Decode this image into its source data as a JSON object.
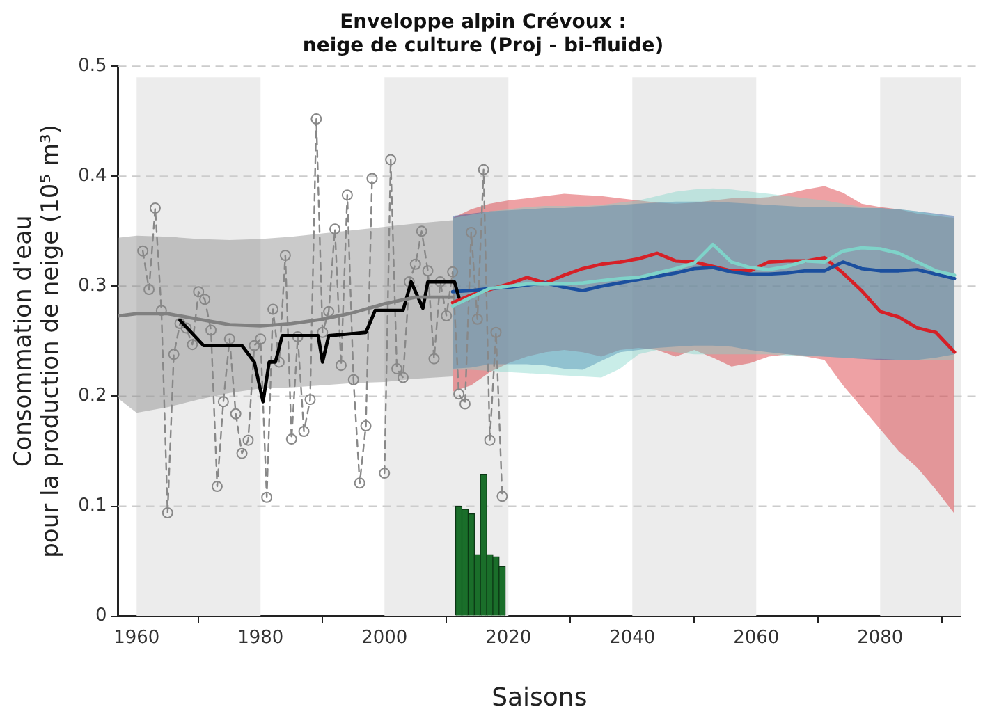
{
  "chart_data": {
    "type": "line",
    "title": "Enveloppe alpin Crévoux :\nneige de culture (Proj - bi-fluide)",
    "xlabel": "Saisons",
    "ylabel": "Consommation d'eau\npour la production de neige (10⁵ m³)",
    "xlim": [
      1957,
      2093
    ],
    "xticks": [
      1960,
      1980,
      2000,
      2020,
      2040,
      2060,
      2080
    ],
    "ylim": [
      0,
      0.5
    ],
    "yticks": [
      0,
      0.1,
      0.2,
      0.3,
      0.4,
      0.5
    ],
    "grid": "y",
    "bands": [
      {
        "axis": "x",
        "from": 1960,
        "to": 1980,
        "color": "#ececec"
      },
      {
        "axis": "x",
        "from": 2000,
        "to": 2020,
        "color": "#ececec"
      },
      {
        "axis": "x",
        "from": 2040,
        "to": 2060,
        "color": "#ececec"
      },
      {
        "axis": "x",
        "from": 2080,
        "to": 2093,
        "color": "#ececec"
      }
    ],
    "series": [
      {
        "color": "#808080",
        "x": [
          1957,
          1960,
          1965,
          1970,
          1975,
          1980,
          1985,
          1990,
          1995,
          2000,
          2005,
          2011
        ],
        "values": [
          0.273,
          0.275,
          0.275,
          0.27,
          0.265,
          0.264,
          0.266,
          0.27,
          0.276,
          0.284,
          0.29,
          0.29
        ],
        "lower": [
          0.198,
          0.185,
          0.19,
          0.197,
          0.203,
          0.207,
          0.208,
          0.21,
          0.212,
          0.213,
          0.216,
          0.218
        ],
        "upper": [
          0.344,
          0.346,
          0.345,
          0.343,
          0.342,
          0.343,
          0.345,
          0.348,
          0.351,
          0.354,
          0.357,
          0.36
        ]
      },
      {
        "color": "#888888",
        "line_style": "dashed",
        "marker": "circle",
        "x": [
          1961,
          1962,
          1963,
          1964,
          1965,
          1966,
          1967,
          1968,
          1969,
          1970,
          1971,
          1972,
          1973,
          1974,
          1975,
          1976,
          1977,
          1978,
          1979,
          1980,
          1981,
          1982,
          1983,
          1984,
          1985,
          1986,
          1987,
          1988,
          1989,
          1990,
          1991,
          1992,
          1993,
          1994,
          1995,
          1996,
          1997,
          1998,
          1999,
          2000,
          2001,
          2002,
          2003,
          2004,
          2005,
          2006,
          2007,
          2008,
          2009,
          2010,
          2011,
          2012,
          2013,
          2014,
          2015,
          2016,
          2017,
          2018,
          2019
        ],
        "values": [
          0.332,
          0.297,
          0.371,
          0.278,
          0.094,
          0.238,
          0.266,
          0.262,
          0.247,
          0.295,
          0.288,
          0.26,
          0.118,
          0.195,
          0.252,
          0.184,
          0.148,
          0.16,
          0.246,
          0.252,
          0.108,
          0.279,
          0.231,
          0.328,
          0.161,
          0.254,
          0.168,
          0.197,
          0.452,
          0.258,
          0.277,
          0.352,
          0.228,
          0.383,
          0.215,
          0.121,
          0.173,
          0.398,
          null,
          0.13,
          0.415,
          0.225,
          0.217,
          0.304,
          0.32,
          0.35,
          0.314,
          0.234,
          0.304,
          0.273,
          0.313,
          0.202,
          0.193,
          0.349,
          0.27,
          0.406,
          0.16,
          0.258,
          0.109
        ]
      },
      {
        "color": "#000000",
        "x": [
          1967,
          1970.8,
          1977,
          1979,
          1980.4,
          1981.4,
          1982.4,
          1983.5,
          1989.3,
          1990,
          1991,
          1997,
          1998.5,
          2003,
          2004.3,
          2006.2,
          2007,
          2011.3,
          2012
        ],
        "values": [
          0.269,
          0.246,
          0.246,
          0.231,
          0.195,
          0.231,
          0.231,
          0.255,
          0.255,
          0.231,
          0.255,
          0.258,
          0.278,
          0.278,
          0.304,
          0.28,
          0.304,
          0.304,
          0.29
        ]
      },
      {
        "type": "bar",
        "color": "#1a6e2a",
        "x": [
          2012,
          2013,
          2014,
          2015,
          2016,
          2017,
          2018,
          2019
        ],
        "values": [
          0.1,
          0.097,
          0.093,
          0.056,
          0.129,
          0.056,
          0.054,
          0.045
        ]
      },
      {
        "color": "#7fd3c9",
        "x": [
          2011,
          2014,
          2017,
          2020,
          2023,
          2026,
          2029,
          2032,
          2035,
          2038,
          2041,
          2044,
          2047,
          2050,
          2053,
          2056,
          2059,
          2062,
          2065,
          2068,
          2071,
          2074,
          2077,
          2080,
          2083,
          2086,
          2089,
          2092
        ],
        "values": [
          0.282,
          0.29,
          0.298,
          0.3,
          0.302,
          0.302,
          0.302,
          0.303,
          0.305,
          0.307,
          0.308,
          0.312,
          0.316,
          0.321,
          0.338,
          0.322,
          0.317,
          0.315,
          0.318,
          0.323,
          0.322,
          0.332,
          0.335,
          0.334,
          0.33,
          0.322,
          0.314,
          0.31
        ],
        "lower": [
          0.224,
          0.224,
          0.223,
          0.222,
          0.221,
          0.22,
          0.219,
          0.218,
          0.217,
          0.225,
          0.238,
          0.242,
          0.24,
          0.238,
          0.238,
          0.238,
          0.238,
          0.238,
          0.237,
          0.236,
          0.236,
          0.235,
          0.234,
          0.234,
          0.233,
          0.233,
          0.233,
          0.233
        ],
        "upper": [
          0.362,
          0.365,
          0.368,
          0.37,
          0.372,
          0.373,
          0.373,
          0.373,
          0.374,
          0.376,
          0.378,
          0.382,
          0.386,
          0.388,
          0.389,
          0.388,
          0.386,
          0.384,
          0.382,
          0.38,
          0.378,
          0.375,
          0.372,
          0.371,
          0.37,
          0.368,
          0.365,
          0.362
        ]
      },
      {
        "color": "#1b4f9e",
        "x": [
          2011,
          2014,
          2017,
          2020,
          2023,
          2026,
          2029,
          2032,
          2035,
          2038,
          2041,
          2044,
          2047,
          2050,
          2053,
          2056,
          2059,
          2062,
          2065,
          2068,
          2071,
          2074,
          2077,
          2080,
          2083,
          2086,
          2089,
          2092
        ],
        "values": [
          0.295,
          0.296,
          0.298,
          0.299,
          0.301,
          0.303,
          0.299,
          0.296,
          0.3,
          0.303,
          0.306,
          0.309,
          0.312,
          0.316,
          0.317,
          0.313,
          0.311,
          0.311,
          0.312,
          0.314,
          0.314,
          0.322,
          0.316,
          0.314,
          0.314,
          0.315,
          0.311,
          0.307
        ],
        "lower": [
          0.225,
          0.226,
          0.229,
          0.229,
          0.229,
          0.228,
          0.225,
          0.224,
          0.232,
          0.24,
          0.242,
          0.244,
          0.245,
          0.246,
          0.246,
          0.245,
          0.242,
          0.24,
          0.238,
          0.237,
          0.236,
          0.235,
          0.234,
          0.233,
          0.233,
          0.233,
          0.235,
          0.238
        ],
        "upper": [
          0.364,
          0.366,
          0.368,
          0.369,
          0.37,
          0.371,
          0.371,
          0.372,
          0.373,
          0.374,
          0.375,
          0.376,
          0.377,
          0.377,
          0.377,
          0.376,
          0.375,
          0.374,
          0.373,
          0.372,
          0.372,
          0.372,
          0.371,
          0.371,
          0.37,
          0.368,
          0.366,
          0.364
        ]
      },
      {
        "color": "#d62027",
        "x": [
          2011,
          2014,
          2017,
          2020,
          2023,
          2026,
          2029,
          2032,
          2035,
          2038,
          2041,
          2044,
          2047,
          2050,
          2053,
          2056,
          2059,
          2062,
          2065,
          2068,
          2071,
          2074,
          2077,
          2080,
          2083,
          2086,
          2089,
          2092
        ],
        "values": [
          0.285,
          0.292,
          0.297,
          0.302,
          0.308,
          0.303,
          0.31,
          0.316,
          0.32,
          0.322,
          0.325,
          0.33,
          0.323,
          0.322,
          0.318,
          0.314,
          0.314,
          0.322,
          0.323,
          0.323,
          0.326,
          0.312,
          0.296,
          0.277,
          0.272,
          0.262,
          0.258,
          0.24
        ],
        "lower": [
          0.204,
          0.21,
          0.222,
          0.23,
          0.236,
          0.24,
          0.242,
          0.24,
          0.236,
          0.242,
          0.244,
          0.242,
          0.236,
          0.242,
          0.235,
          0.227,
          0.23,
          0.236,
          0.238,
          0.236,
          0.233,
          0.21,
          0.19,
          0.17,
          0.15,
          0.135,
          0.115,
          0.093
        ],
        "upper": [
          0.362,
          0.37,
          0.375,
          0.378,
          0.38,
          0.382,
          0.384,
          0.383,
          0.382,
          0.38,
          0.378,
          0.376,
          0.375,
          0.376,
          0.378,
          0.38,
          0.38,
          0.381,
          0.384,
          0.388,
          0.391,
          0.385,
          0.375,
          0.372,
          0.37,
          0.366,
          0.364,
          0.362
        ]
      }
    ]
  }
}
